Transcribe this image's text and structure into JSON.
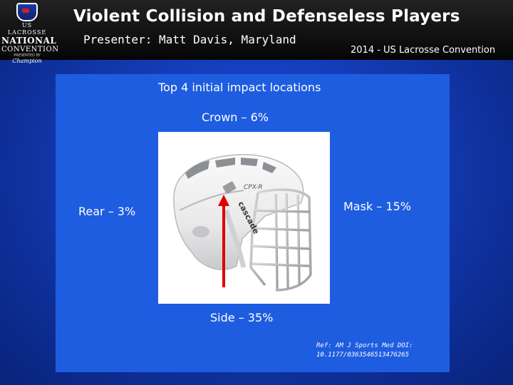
{
  "header": {
    "title": "Violent Collision and Defenseless Players",
    "presenter": "Presenter: Matt Davis, Maryland",
    "conference": "2014 - US Lacrosse Convention"
  },
  "logo": {
    "line1": "US LACROSSE",
    "line2": "NATIONAL",
    "line3": "CONVENTION",
    "line4": "PRESENTED BY",
    "line5": "Champion"
  },
  "slide": {
    "heading": "Top 4 initial impact locations",
    "crown": "Crown – 6%",
    "rear": "Rear – 3%",
    "mask": "Mask – 15%",
    "side": "Side – 35%",
    "reference_line1": "Ref: AM J Sports Med DOI:",
    "reference_line2": "10.1177/0363546513476265"
  },
  "helmet": {
    "brand_text": "CPX-R",
    "side_text": "cascade"
  },
  "colors": {
    "background": "#1640c0",
    "panel": "#1e5de0",
    "arrow": "#e00000"
  }
}
